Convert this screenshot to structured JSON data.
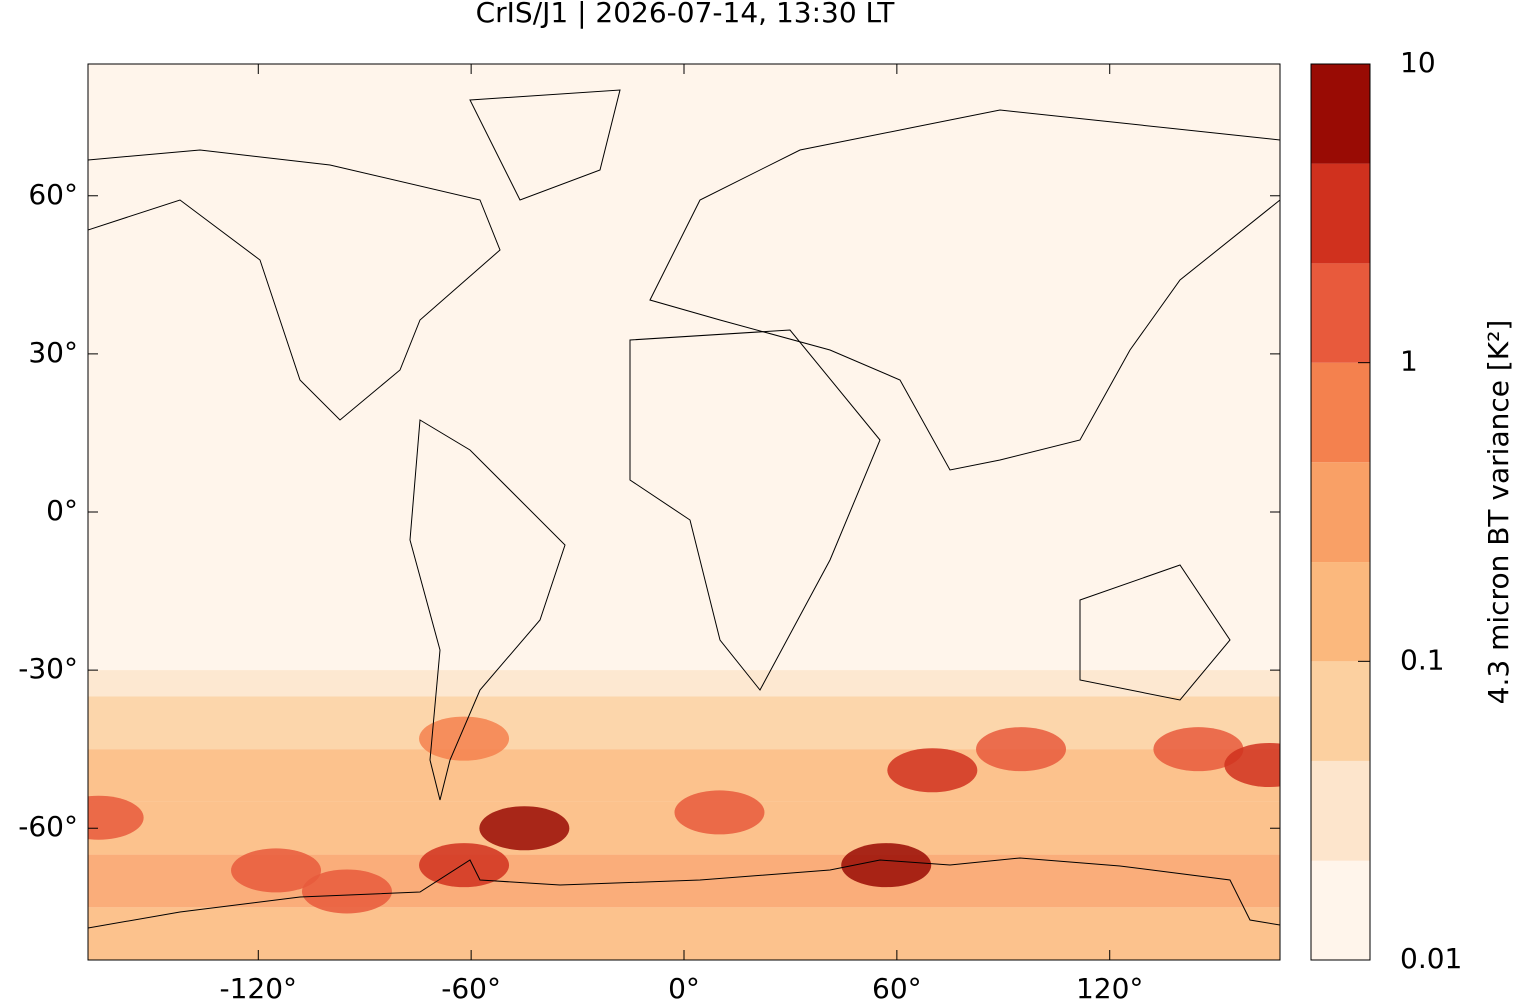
{
  "chart_data": {
    "type": "map",
    "title": "CrIS/J1 | 2026-07-14, 13:30 LT",
    "xlim": [
      -168,
      168
    ],
    "ylim": [
      -85,
      85
    ],
    "xticks": [
      {
        "value": -120,
        "label": "-120°"
      },
      {
        "value": -60,
        "label": "-60°"
      },
      {
        "value": 0,
        "label": "0°"
      },
      {
        "value": 60,
        "label": "60°"
      },
      {
        "value": 120,
        "label": "120°"
      }
    ],
    "yticks": [
      {
        "value": -60,
        "label": "-60°"
      },
      {
        "value": -30,
        "label": "-30°"
      },
      {
        "value": 0,
        "label": "0°"
      },
      {
        "value": 30,
        "label": "30°"
      },
      {
        "value": 60,
        "label": "60°"
      }
    ],
    "background_value": 0.012,
    "zonal_bands": {
      "lat_edges": [
        -85,
        -75,
        -65,
        -55,
        -45,
        -35,
        -30
      ],
      "values": [
        0.2,
        0.3,
        0.15,
        0.1,
        0.05,
        0.03
      ]
    },
    "hotspots": [
      {
        "lon": -45,
        "lat": -60,
        "value": 5
      },
      {
        "lon": -62,
        "lat": -67,
        "value": 3
      },
      {
        "lon": 57,
        "lat": -67,
        "value": 6
      },
      {
        "lon": 95,
        "lat": -45,
        "value": 1.5
      },
      {
        "lon": -95,
        "lat": -72,
        "value": 1.2
      },
      {
        "lon": -165,
        "lat": -58,
        "value": 2
      },
      {
        "lon": -62,
        "lat": -43,
        "value": 0.8
      },
      {
        "lon": 10,
        "lat": -57,
        "value": 1
      },
      {
        "lon": 145,
        "lat": -45,
        "value": 1.2
      },
      {
        "lon": 165,
        "lat": -48,
        "value": 3
      },
      {
        "lon": 70,
        "lat": -49,
        "value": 3
      },
      {
        "lon": -115,
        "lat": -68,
        "value": 1
      }
    ],
    "colorbar": {
      "label": "4.3 micron BT variance [K²]",
      "log_scale": true,
      "clim": [
        0.01,
        10
      ],
      "ticks": [
        0.01,
        0.1,
        1,
        10
      ],
      "levels": [
        0.01,
        0.0215,
        0.0464,
        0.1,
        0.215,
        0.464,
        1,
        2.15,
        4.64,
        10
      ],
      "colors": [
        "#fff5eb",
        "#fde5cc",
        "#fcd0a0",
        "#fbb87d",
        "#f9a066",
        "#f4814e",
        "#e85a3c",
        "#d0311e",
        "#990b04"
      ]
    }
  }
}
